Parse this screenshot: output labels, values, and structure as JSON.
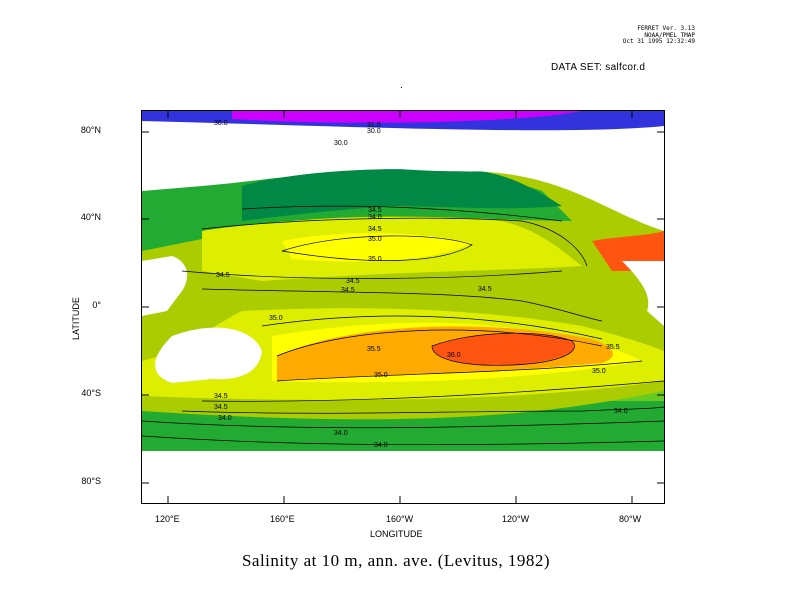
{
  "header": {
    "line1": "FERRET Ver. 3.13",
    "line2": "NOAA/PMEL TMAP",
    "line3": "Oct 31 1995 12:32:49"
  },
  "dataset": "DATA SET: salfcor.d",
  "title": "Salinity at 10 m, ann. ave. (Levitus, 1982)",
  "axes": {
    "xlabel": "LONGITUDE",
    "ylabel": "LATITUDE",
    "lon_ticks": [
      "120°E",
      "160°E",
      "160°W",
      "120°W",
      "80°W"
    ],
    "lat_ticks": [
      "80°N",
      "40°N",
      "0°",
      "40°S",
      "80°S"
    ]
  },
  "colors": {
    "magenta": "#cc00ff",
    "blue": "#3333dd",
    "dark_green": "#008844",
    "green": "#22aa33",
    "light_green": "#66cc22",
    "yellow_green": "#aacc00",
    "yellow": "#ddee00",
    "bright_yellow": "#ffff00",
    "orange": "#ffaa00",
    "red_orange": "#ff5511"
  },
  "contour_labels": [
    "30.0",
    "31.0",
    "30.0",
    "30.0",
    "34.5",
    "34.0",
    "34.5",
    "35.0",
    "35.0",
    "34.5",
    "34.5",
    "34.5",
    "34.5",
    "35.0",
    "35.5",
    "36.0",
    "35.5",
    "35.0",
    "35.0",
    "34.5",
    "34.5",
    "34.0",
    "34.0",
    "34.0",
    "34.0"
  ]
}
